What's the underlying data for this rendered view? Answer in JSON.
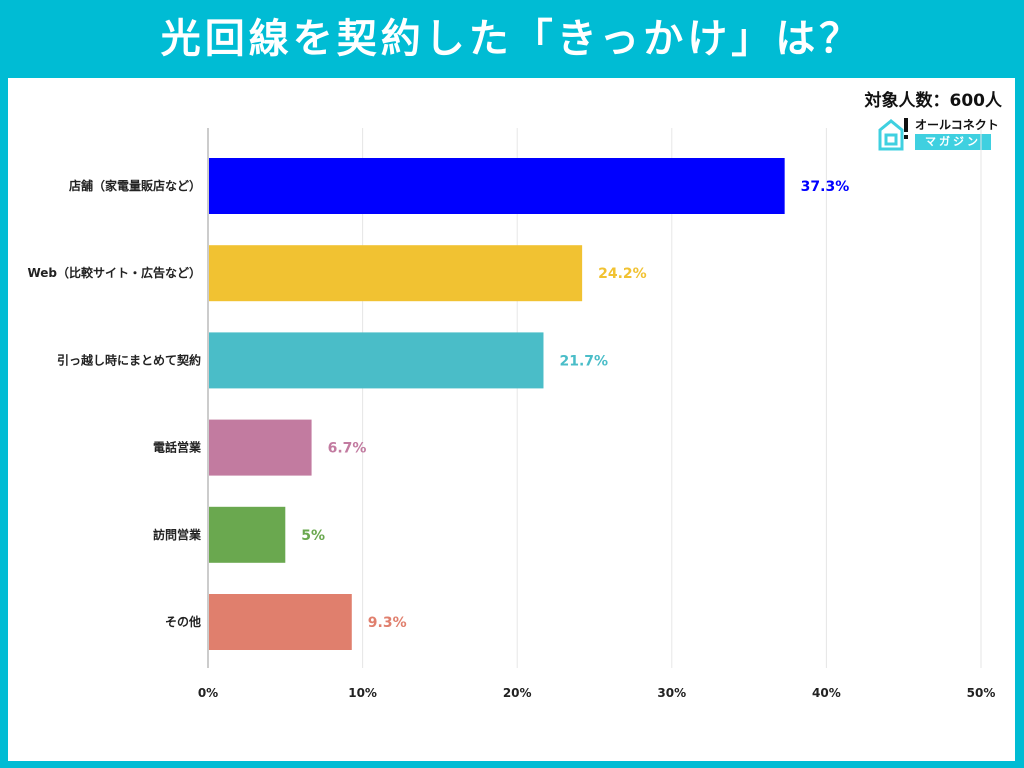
{
  "title": "光回線を契約した「きっかけ」は？",
  "sample": "対象人数：600人",
  "logo": {
    "line1": "オールコネクト",
    "line2": "マガジン"
  },
  "chart_data": {
    "type": "bar",
    "orientation": "horizontal",
    "categories": [
      "店舗（家電量販店など）",
      "Web（比較サイト・広告など）",
      "引っ越し時にまとめて契約",
      "電話営業",
      "訪問営業",
      "その他"
    ],
    "values": [
      37.3,
      24.2,
      21.7,
      6.7,
      5,
      9.3
    ],
    "data_labels": [
      "37.3%",
      "24.2%",
      "21.7%",
      "6.7%",
      "5%",
      "9.3%"
    ],
    "colors": [
      "#0000ff",
      "#f1c232",
      "#4abdc8",
      "#c27ba0",
      "#6aa84f",
      "#e07f6d"
    ],
    "xlim": [
      0,
      50
    ],
    "xticks": [
      "0%",
      "10%",
      "20%",
      "30%",
      "40%",
      "50%"
    ],
    "grid": true
  }
}
